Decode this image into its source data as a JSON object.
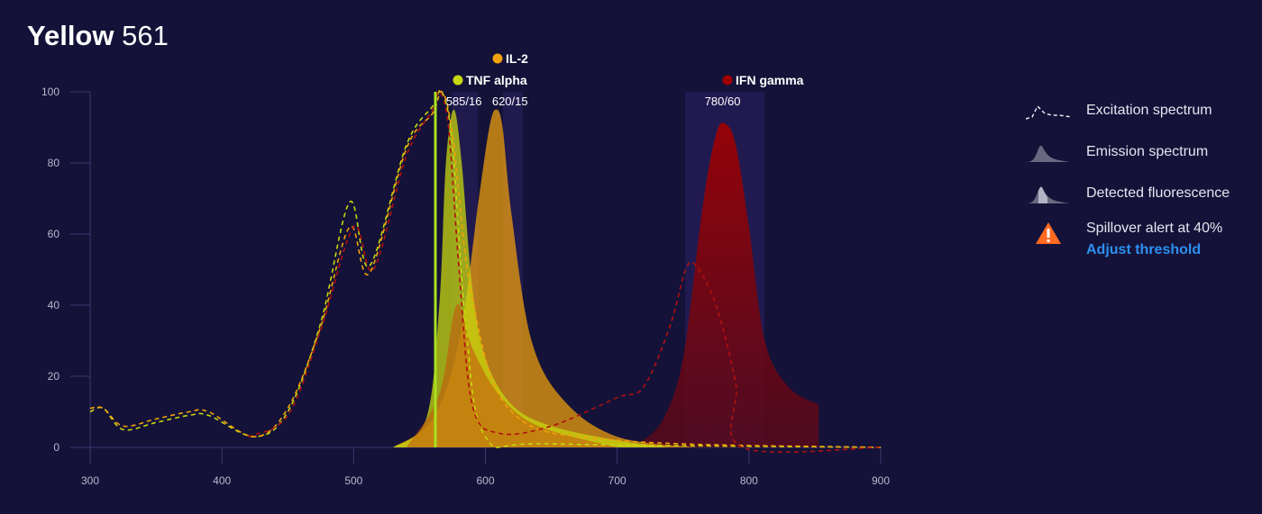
{
  "header": {
    "title_bold": "Yellow",
    "title_rest": "561"
  },
  "legend": {
    "items": [
      {
        "icon": "excitation-spectrum-icon",
        "label": "Excitation spectrum"
      },
      {
        "icon": "emission-spectrum-icon",
        "label": "Emission spectrum"
      },
      {
        "icon": "detected-fluorescence-icon",
        "label": "Detected fluorescence"
      }
    ],
    "alert": {
      "icon": "warning-triangle-icon",
      "label": "Spillover alert at 40%",
      "link": "Adjust threshold"
    }
  },
  "colors": {
    "background": "#141238",
    "tnf_alpha": "#c8d80e",
    "il2": "#f2a20c",
    "ifn_gamma": "#8b0000",
    "laser": "#a8e020",
    "filter_band": "#2a2060",
    "link": "#2d8ff0",
    "alert": "#ff6a22"
  },
  "chart_data": {
    "type": "area",
    "title": "Yellow 561",
    "xlabel": "",
    "ylabel": "",
    "xlim": [
      300,
      900
    ],
    "ylim": [
      0,
      100
    ],
    "x_ticks": [
      300,
      400,
      500,
      600,
      700,
      800,
      900
    ],
    "y_ticks": [
      0,
      20,
      40,
      60,
      80,
      100
    ],
    "laser_line_nm": 561,
    "filters": [
      {
        "label": "585/16",
        "center": 585,
        "width": 16
      },
      {
        "label": "620/15",
        "center": 620,
        "width": 15
      },
      {
        "label": "780/60",
        "center": 780,
        "width": 60
      }
    ],
    "dyes": [
      {
        "name": "TNF alpha",
        "color": "#c8d80e",
        "emission_peak_nm": 576,
        "emission_peak": 95,
        "excitation": {
          "x": [
            300,
            310,
            325,
            350,
            375,
            390,
            425,
            450,
            475,
            497,
            512,
            540,
            560,
            567,
            575,
            585,
            600,
            650,
            900
          ],
          "y": [
            10,
            11,
            5,
            7,
            9,
            9,
            3,
            10,
            35,
            69,
            51,
            85,
            96,
            100,
            85,
            35,
            3,
            1,
            0
          ]
        },
        "emission": {
          "x": [
            530,
            555,
            565,
            570,
            576,
            582,
            590,
            600,
            620,
            650,
            700,
            740
          ],
          "y": [
            0,
            8,
            40,
            80,
            95,
            80,
            45,
            25,
            12,
            6,
            2,
            0
          ]
        }
      },
      {
        "name": "IL-2",
        "color": "#f2a20c",
        "emission_peak_nm": 608,
        "emission_peak": 95,
        "excitation": {
          "x": [
            300,
            310,
            325,
            350,
            375,
            390,
            425,
            450,
            475,
            497,
            512,
            540,
            560,
            567,
            575,
            590,
            620,
            700,
            900
          ],
          "y": [
            11,
            11,
            6,
            8,
            10,
            10,
            3,
            11,
            34,
            62,
            49,
            84,
            94,
            100,
            88,
            42,
            10,
            2,
            0
          ]
        },
        "emission": {
          "x": [
            530,
            560,
            580,
            595,
            603,
            608,
            613,
            620,
            635,
            660,
            700,
            760
          ],
          "y": [
            0,
            8,
            30,
            70,
            90,
            95,
            90,
            65,
            30,
            13,
            3,
            0
          ]
        }
      },
      {
        "name": "IFN gamma",
        "color": "#8b0000",
        "emission_peak_nm": 782,
        "emission_peak": 91,
        "excitation": {
          "x": [
            420,
            450,
            475,
            500,
            515,
            540,
            560,
            565,
            572,
            580,
            590,
            610,
            650,
            700,
            720,
            740,
            752,
            760,
            775,
            790,
            795,
            900
          ],
          "y": [
            3,
            9,
            33,
            62,
            50,
            82,
            95,
            100,
            90,
            50,
            12,
            4,
            6,
            14,
            17,
            34,
            50,
            51,
            40,
            18,
            0,
            0
          ]
        },
        "emission": {
          "x": [
            720,
            735,
            750,
            765,
            775,
            782,
            790,
            800,
            812,
            830,
            853
          ],
          "y": [
            2,
            8,
            25,
            68,
            88,
            91,
            85,
            62,
            30,
            17,
            12
          ]
        }
      }
    ],
    "legend_position": "right"
  }
}
